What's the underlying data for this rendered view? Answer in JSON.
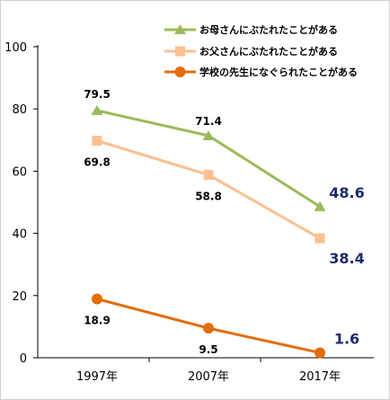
{
  "chart_data": {
    "type": "line",
    "categories": [
      "1997年",
      "2007年",
      "2017年"
    ],
    "ylim": [
      0,
      100
    ],
    "yticks": [
      "0",
      "20",
      "40",
      "60",
      "80",
      "100"
    ],
    "legend_position": "top-right",
    "grid": false,
    "series": [
      {
        "name": "お母さんにぶたれたことがある",
        "values": [
          79.5,
          71.4,
          48.6
        ],
        "labels": [
          "79.5",
          "71.4",
          "48.6"
        ],
        "color": "#9bbb59",
        "marker": "triangle",
        "highlight_last": true
      },
      {
        "name": "お父さんにぶたれたことがある",
        "values": [
          69.8,
          58.8,
          38.4
        ],
        "labels": [
          "69.8",
          "58.8",
          "38.4"
        ],
        "color": "#fac090",
        "marker": "square",
        "highlight_last": true
      },
      {
        "name": "学校の先生になぐられたことがある",
        "values": [
          18.9,
          9.5,
          1.6
        ],
        "labels": [
          "18.9",
          "9.5",
          "1.6"
        ],
        "color": "#e46c0a",
        "marker": "circle",
        "highlight_last": true
      }
    ]
  }
}
